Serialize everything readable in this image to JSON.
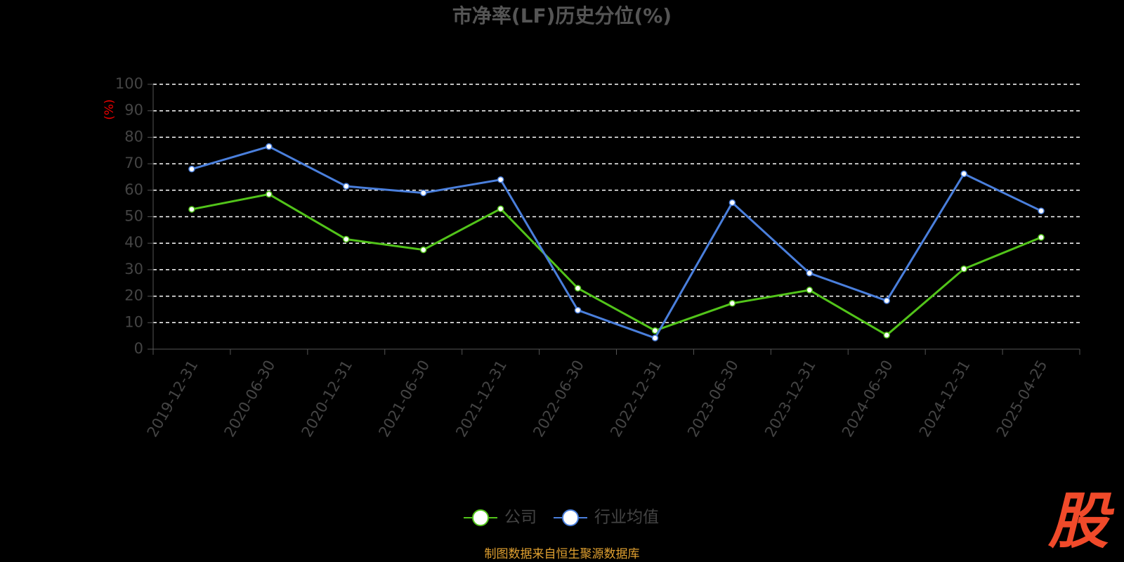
{
  "chart_data": {
    "type": "line",
    "title": "市净率(LF)历史分位(%)",
    "y_label": "(%)",
    "categories": [
      "2019-12-31",
      "2020-06-30",
      "2020-12-31",
      "2021-06-30",
      "2021-12-31",
      "2022-06-30",
      "2022-12-31",
      "2023-06-30",
      "2023-12-31",
      "2024-06-30",
      "2024-12-31",
      "2025-04-25"
    ],
    "series": [
      {
        "name": "公司",
        "color": "#52c41a",
        "values": [
          52.8,
          58.5,
          41.5,
          37.5,
          53,
          23,
          7,
          17.3,
          22.3,
          5.3,
          30.3,
          42.2
        ]
      },
      {
        "name": "行业均值",
        "color": "#4a7fdc",
        "values": [
          68,
          76.5,
          61.5,
          59,
          64,
          14.7,
          4.2,
          55.3,
          28.7,
          18.3,
          66.2,
          52.2
        ]
      }
    ],
    "ylim": [
      0,
      100
    ],
    "yticks": [
      0,
      10,
      20,
      30,
      40,
      50,
      60,
      70,
      80,
      90,
      100
    ],
    "grid": true,
    "legend": "bottom",
    "source": "制图数据来自恒生聚源数据库",
    "logo": "股"
  }
}
